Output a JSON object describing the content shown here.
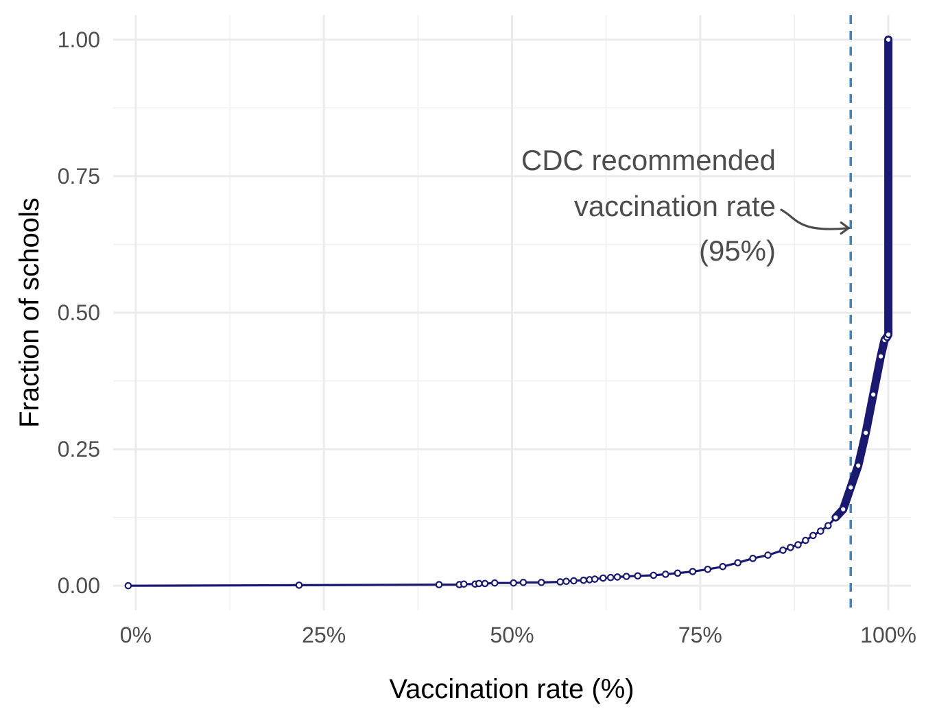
{
  "chart_data": {
    "type": "line",
    "title": "",
    "xlabel": "Vaccination rate (%)",
    "ylabel": "Fraction of schools",
    "xlim": [
      -0.03,
      1.03
    ],
    "ylim": [
      -0.045,
      1.045
    ],
    "x_major_ticks": [
      0,
      0.25,
      0.5,
      0.75,
      1.0
    ],
    "x_minor_ticks": [
      0.125,
      0.375,
      0.625,
      0.875
    ],
    "x_tick_labels": [
      "0%",
      "25%",
      "50%",
      "75%",
      "100%"
    ],
    "y_major_ticks": [
      0,
      0.25,
      0.5,
      0.75,
      1.0
    ],
    "y_minor_ticks": [
      0.125,
      0.375,
      0.625,
      0.875
    ],
    "y_tick_labels": [
      "0.00",
      "0.25",
      "0.50",
      "0.75",
      "1.00"
    ],
    "grid": true,
    "series": [
      {
        "color": "#191970",
        "marker": "open-circle",
        "x": [
          -0.01,
          0.217,
          0.403,
          0.43,
          0.436,
          0.451,
          0.456,
          0.464,
          0.477,
          0.502,
          0.515,
          0.539,
          0.564,
          0.572,
          0.582,
          0.595,
          0.603,
          0.61,
          0.621,
          0.631,
          0.64,
          0.652,
          0.667,
          0.688,
          0.704,
          0.72,
          0.74,
          0.76,
          0.78,
          0.8,
          0.82,
          0.84,
          0.86,
          0.87,
          0.88,
          0.89,
          0.9,
          0.91,
          0.92,
          0.93,
          0.94,
          0.95,
          0.96,
          0.97,
          0.98,
          0.99,
          0.995,
          0.998,
          1.0,
          1.0
        ],
        "y": [
          0,
          0.001,
          0.002,
          0.002,
          0.003,
          0.003,
          0.004,
          0.004,
          0.005,
          0.005,
          0.006,
          0.006,
          0.007,
          0.008,
          0.009,
          0.01,
          0.011,
          0.012,
          0.014,
          0.015,
          0.016,
          0.017,
          0.018,
          0.019,
          0.021,
          0.023,
          0.026,
          0.03,
          0.035,
          0.042,
          0.05,
          0.056,
          0.065,
          0.07,
          0.075,
          0.083,
          0.092,
          0.1,
          0.11,
          0.125,
          0.14,
          0.18,
          0.22,
          0.28,
          0.35,
          0.42,
          0.45,
          0.455,
          0.46,
          1.0
        ]
      }
    ],
    "reference_line": {
      "x": 0.95,
      "style": "dashed",
      "color": "#4682b4"
    },
    "annotation": {
      "lines": [
        "CDC recommended",
        "vaccination rate",
        "(95%)"
      ],
      "color": "#4d4d4d",
      "arrow_to": {
        "x": 0.95,
        "y": 0.655
      }
    }
  }
}
